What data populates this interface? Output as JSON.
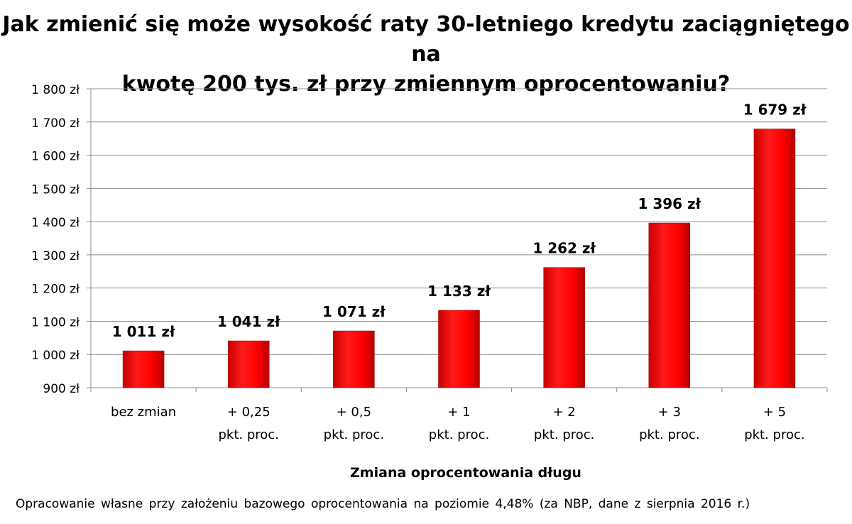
{
  "title": {
    "line1": "Jak zmienić się może wysokość raty 30-letniego kredytu zaciągniętego na",
    "line2": "kwotę 200 tys. zł przy zmiennym oprocentowaniu?"
  },
  "chart_data": {
    "type": "bar",
    "title": "Jak zmienić się może wysokość raty 30-letniego kredytu zaciągniętego na kwotę 200 tys. zł przy zmiennym oprocentowaniu?",
    "xlabel": "Zmiana oprocentowania długu",
    "ylabel": "",
    "ylim": [
      900,
      1800
    ],
    "y_ticks": [
      900,
      1000,
      1100,
      1200,
      1300,
      1400,
      1500,
      1600,
      1700,
      1800
    ],
    "y_tick_labels": [
      "900 zł",
      "1 000 zł",
      "1 100 zł",
      "1 200 zł",
      "1 300 zł",
      "1 400 zł",
      "1 500 zł",
      "1 600 zł",
      "1 700 zł",
      "1 800 zł"
    ],
    "grid": true,
    "legend": "none",
    "categories": [
      [
        "bez zmian"
      ],
      [
        "+ 0,25",
        "pkt. proc."
      ],
      [
        "+ 0,5",
        "pkt. proc."
      ],
      [
        "+ 1",
        "pkt. proc."
      ],
      [
        "+ 2",
        "pkt. proc."
      ],
      [
        "+ 3",
        "pkt. proc."
      ],
      [
        "+ 5",
        "pkt. proc."
      ]
    ],
    "values": [
      1011,
      1041,
      1071,
      1133,
      1262,
      1396,
      1679
    ],
    "data_labels": [
      "1 011 zł",
      "1 041 zł",
      "1 071 zł",
      "1 133 zł",
      "1 262 zł",
      "1 396 zł",
      "1 679 zł"
    ],
    "bar_color": "#ff0000"
  },
  "footnote": "Opracowanie własne przy założeniu bazowego oprocentowania na poziomie 4,48% (za NBP, dane z sierpnia 2016 r.)"
}
